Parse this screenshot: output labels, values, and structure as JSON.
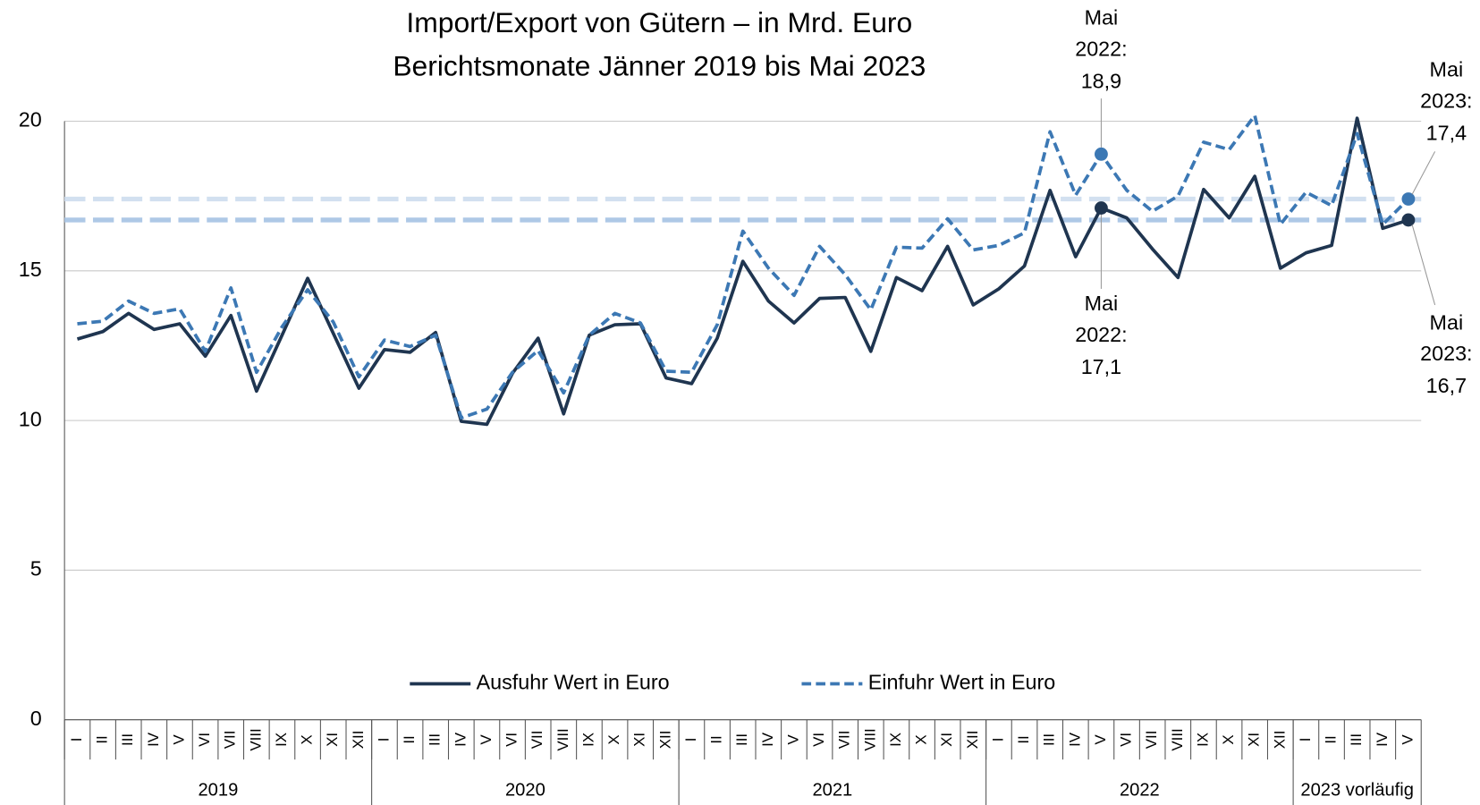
{
  "chart_data": {
    "type": "line",
    "title": "Import/Export von Gütern – in Mrd. Euro",
    "subtitle": "Berichtsmonate Jänner 2019 bis Mai 2023",
    "categories": [
      "I",
      "II",
      "III",
      "IV",
      "V",
      "VI",
      "VII",
      "VIII",
      "IX",
      "X",
      "XI",
      "XII",
      "I",
      "II",
      "III",
      "IV",
      "V",
      "VI",
      "VII",
      "VIII",
      "IX",
      "X",
      "XI",
      "XII",
      "I",
      "II",
      "III",
      "IV",
      "V",
      "VI",
      "VII",
      "VIII",
      "IX",
      "X",
      "XI",
      "XII",
      "I",
      "II",
      "III",
      "IV",
      "V",
      "VI",
      "VII",
      "VIII",
      "IX",
      "X",
      "XI",
      "XII",
      "I",
      "II",
      "III",
      "IV",
      "V"
    ],
    "year_groups": [
      {
        "label": "2019",
        "span": 12
      },
      {
        "label": "2020",
        "span": 12
      },
      {
        "label": "2021",
        "span": 12
      },
      {
        "label": "2022",
        "span": 12
      },
      {
        "label": "2023 vorläufig",
        "span": 5
      }
    ],
    "series": [
      {
        "name": "Ausfuhr Wert in Euro",
        "color": "#1f3550",
        "dash": false,
        "values": [
          12.72,
          12.97,
          13.58,
          13.04,
          13.23,
          12.15,
          13.51,
          10.98,
          12.85,
          14.75,
          12.91,
          11.08,
          12.37,
          12.28,
          12.94,
          9.97,
          9.87,
          11.58,
          12.75,
          10.22,
          12.85,
          13.2,
          13.23,
          11.42,
          11.23,
          12.75,
          15.32,
          13.99,
          13.26,
          14.08,
          14.11,
          12.31,
          14.78,
          14.34,
          15.82,
          13.86,
          14.4,
          15.16,
          17.69,
          15.47,
          17.1,
          16.77,
          15.73,
          14.78,
          17.72,
          16.77,
          18.16,
          15.09,
          15.6,
          15.85,
          20.1,
          16.42,
          16.7
        ]
      },
      {
        "name": "Einfuhr Wert in Euro",
        "color": "#3c78b4",
        "dash": true,
        "values": [
          13.23,
          13.32,
          13.99,
          13.58,
          13.73,
          12.31,
          14.43,
          11.61,
          13.13,
          14.37,
          13.29,
          11.46,
          12.69,
          12.47,
          12.85,
          10.09,
          10.38,
          11.61,
          12.34,
          10.92,
          12.85,
          13.58,
          13.26,
          11.65,
          11.61,
          13.2,
          16.33,
          15.09,
          14.18,
          15.82,
          14.87,
          13.7,
          15.79,
          15.76,
          16.74,
          15.7,
          15.85,
          16.27,
          19.65,
          17.53,
          18.9,
          17.69,
          16.99,
          17.5,
          19.3,
          19.05,
          20.19,
          16.55,
          17.63,
          17.18,
          19.59,
          16.55,
          17.4
        ]
      }
    ],
    "reference_lines": [
      {
        "value": 17.4,
        "color": "#d2e0f0"
      },
      {
        "value": 16.7,
        "color": "#aec8e6"
      }
    ],
    "annotations": [
      {
        "lines": [
          "Mai",
          "2022:",
          "18,9"
        ],
        "value": 18.9
      },
      {
        "lines": [
          "Mai",
          "2022:",
          "17,1"
        ],
        "value": 17.1
      },
      {
        "lines": [
          "Mai",
          "2023:",
          "17,4"
        ],
        "value": 17.4
      },
      {
        "lines": [
          "Mai",
          "2023:",
          "16,7"
        ],
        "value": 16.7
      }
    ],
    "ylim": [
      0,
      20
    ],
    "yticks": [
      0,
      5,
      10,
      15,
      20
    ],
    "grid": true,
    "legend": "bottom"
  }
}
